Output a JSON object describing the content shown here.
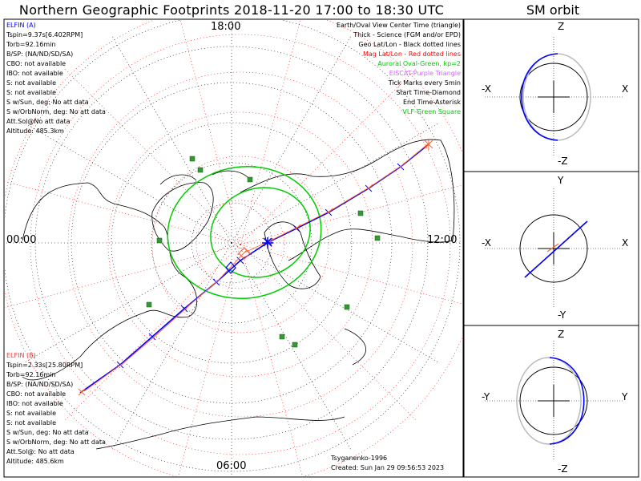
{
  "header": {
    "title": "Northern Geographic Footprints 2018-11-20 17:00 to 18:30 UTC",
    "orbit_title": "SM orbit"
  },
  "map": {
    "clock_labels": {
      "top": "18:00",
      "left": "00:00",
      "right": "12:00",
      "bottom": "06:00"
    },
    "legend": [
      {
        "text": "Earth/Oval View Center Time (triangle)",
        "color": "#000000"
      },
      {
        "text": "Thick - Science (FGM and/or EPD)",
        "color": "#000000"
      },
      {
        "text": "Geo Lat/Lon - Black dotted lines",
        "color": "#000000"
      },
      {
        "text": "Mag Lat/Lon - Red dotted lines",
        "color": "#ff0000"
      },
      {
        "text": "Auroral Oval-Green, kp=2",
        "color": "#00cc00"
      },
      {
        "text": "EISCAT-Purple Triangle",
        "color": "#cc66ff"
      },
      {
        "text": "Tick Marks every 5min",
        "color": "#000000"
      },
      {
        "text": "Start Time-Diamond",
        "color": "#000000"
      },
      {
        "text": "End Time-Asterisk",
        "color": "#000000"
      },
      {
        "text": "VLF-Green Square",
        "color": "#00cc00"
      }
    ],
    "probe_a": {
      "name": "ELFIN (A)",
      "color": "#0000ff",
      "lines": [
        "Tspin=9.37s[6.402RPM]",
        "Torb=92.16min",
        "B/SP: (NA/ND/SD/SA)",
        "CBO: not available",
        "IBO: not available",
        "S: not available",
        "S: not available",
        "S w/Sun, deg: No att data",
        "S w/OrbNorm, deg: No att data",
        "Att.Sol@No att data",
        "Altitude: 485.3km"
      ]
    },
    "probe_b": {
      "name": "ELFIN (B)",
      "color": "#ff3333",
      "lines": [
        "Tspin=2.33s[25.80RPM]",
        "Torb=92.16min",
        "B/SP: (NA/ND/SD/SA)",
        "CBO: not available",
        "IBO: not available",
        "S: not available",
        "S: not available",
        "S w/Sun, deg: No att data",
        "S w/OrbNorm, deg: No att data",
        "Att.Sol@: No att data",
        "Altitude: 485.6km"
      ]
    },
    "credit": "Tsyganenko-1996",
    "created": "Created: Sun Jan 29 09:56:53 2023"
  },
  "orbit_panels": [
    {
      "top": "Z",
      "bottom": "-Z",
      "left": "-X",
      "right": "X"
    },
    {
      "top": "Y",
      "bottom": "-Y",
      "left": "-X",
      "right": "X"
    },
    {
      "top": "Z",
      "bottom": "-Z",
      "left": "-Y",
      "right": "Y"
    }
  ],
  "colors": {
    "probe_a_track": "#0000ff",
    "probe_b_track": "#ff6633",
    "geo_grid": "#000000",
    "mag_grid": "#ff0000",
    "auroral_oval": "#00cc00",
    "vlf_station": "#339933",
    "frame": "#000000"
  }
}
